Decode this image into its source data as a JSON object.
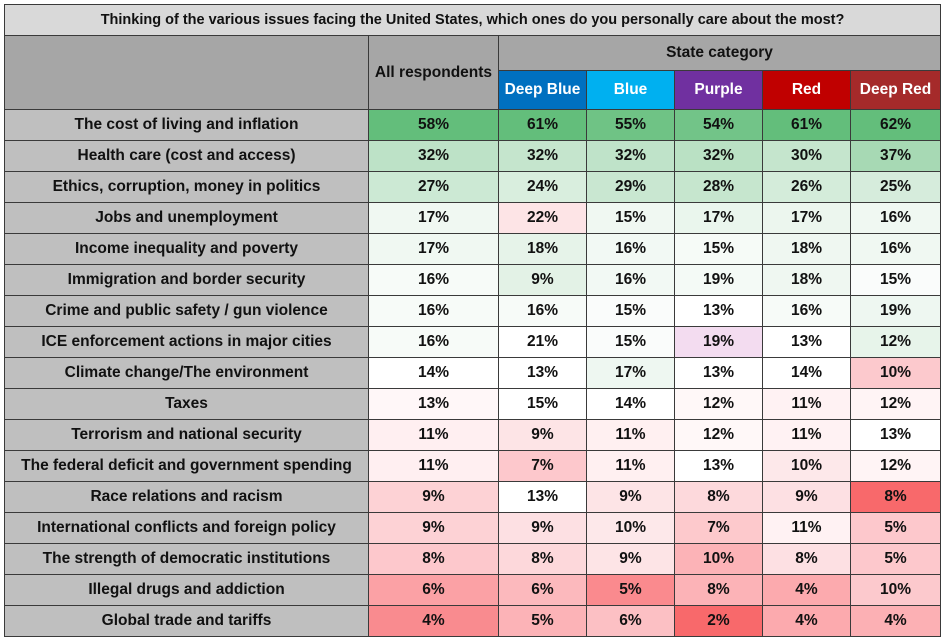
{
  "title": "Thinking of the various issues facing the United States, which ones do you personally care about the most?",
  "header": {
    "all": "All respondents",
    "state_category": "State category",
    "states": [
      {
        "label": "Deep Blue",
        "color": "#0070c0"
      },
      {
        "label": "Blue",
        "color": "#00b0f0"
      },
      {
        "label": "Purple",
        "color": "#7030a0"
      },
      {
        "label": "Red",
        "color": "#c00000"
      },
      {
        "label": "Deep Red",
        "color": "#a52a2a"
      }
    ]
  },
  "chart_data": {
    "type": "table",
    "title": "Thinking of the various issues facing the United States, which ones do you personally care about the most?",
    "columns": [
      "All respondents",
      "Deep Blue",
      "Blue",
      "Purple",
      "Red",
      "Deep Red"
    ],
    "column_group": "State category",
    "rows": [
      {
        "label": "The cost of living and inflation",
        "values": [
          "58%",
          "61%",
          "55%",
          "54%",
          "61%",
          "62%"
        ]
      },
      {
        "label": "Health care (cost and access)",
        "values": [
          "32%",
          "32%",
          "32%",
          "32%",
          "30%",
          "37%"
        ]
      },
      {
        "label": "Ethics, corruption, money in politics",
        "values": [
          "27%",
          "24%",
          "29%",
          "28%",
          "26%",
          "25%"
        ]
      },
      {
        "label": "Jobs and unemployment",
        "values": [
          "17%",
          "22%",
          "15%",
          "17%",
          "17%",
          "16%"
        ]
      },
      {
        "label": "Income inequality and poverty",
        "values": [
          "17%",
          "18%",
          "16%",
          "15%",
          "18%",
          "16%"
        ]
      },
      {
        "label": "Immigration and border security",
        "values": [
          "16%",
          "9%",
          "16%",
          "19%",
          "18%",
          "15%"
        ]
      },
      {
        "label": "Crime and public safety / gun violence",
        "values": [
          "16%",
          "16%",
          "15%",
          "13%",
          "16%",
          "19%"
        ]
      },
      {
        "label": "ICE enforcement actions in major cities",
        "values": [
          "16%",
          "21%",
          "15%",
          "19%",
          "13%",
          "12%"
        ]
      },
      {
        "label": "Climate change/The environment",
        "values": [
          "14%",
          "13%",
          "17%",
          "13%",
          "14%",
          "10%"
        ]
      },
      {
        "label": "Taxes",
        "values": [
          "13%",
          "15%",
          "14%",
          "12%",
          "11%",
          "12%"
        ]
      },
      {
        "label": "Terrorism and national security",
        "values": [
          "11%",
          "9%",
          "11%",
          "12%",
          "11%",
          "13%"
        ]
      },
      {
        "label": "The federal deficit and government spending",
        "values": [
          "11%",
          "7%",
          "11%",
          "13%",
          "10%",
          "12%"
        ]
      },
      {
        "label": "Race relations and racism",
        "values": [
          "9%",
          "13%",
          "9%",
          "8%",
          "9%",
          "8%"
        ]
      },
      {
        "label": "International conflicts and foreign policy",
        "values": [
          "9%",
          "9%",
          "10%",
          "7%",
          "11%",
          "5%"
        ]
      },
      {
        "label": "The strength of democratic institutions",
        "values": [
          "8%",
          "8%",
          "9%",
          "10%",
          "8%",
          "5%"
        ]
      },
      {
        "label": "Illegal drugs and addiction",
        "values": [
          "6%",
          "6%",
          "5%",
          "8%",
          "4%",
          "10%"
        ]
      },
      {
        "label": "Global trade and tariffs",
        "values": [
          "4%",
          "5%",
          "6%",
          "2%",
          "4%",
          "4%"
        ]
      }
    ],
    "cell_colors": [
      [
        "#63be7b",
        "#63be7b",
        "#6fc385",
        "#72c488",
        "#63be7b",
        "#63be7b"
      ],
      [
        "#bde2c7",
        "#c5e5cd",
        "#bfe3c9",
        "#bae1c4",
        "#c5e5cd",
        "#a7d9b4"
      ],
      [
        "#cce9d4",
        "#d9eede",
        "#c9e7d1",
        "#c6e6ce",
        "#d4ecda",
        "#d6ecdc"
      ],
      [
        "#f0f8f2",
        "#fde4e6",
        "#f0f8f2",
        "#eaf6ed",
        "#ecf6ee",
        "#f0f8f2"
      ],
      [
        "#f0f8f2",
        "#e6f3e9",
        "#f2f9f4",
        "#f6fbf7",
        "#eff7f1",
        "#f0f8f2"
      ],
      [
        "#f7fbf8",
        "#e3f2e6",
        "#f2f9f4",
        "#f4faf6",
        "#eff7f1",
        "#fafcfb"
      ],
      [
        "#f7fbf8",
        "#f7fbf8",
        "#fafcfb",
        "#ffffff",
        "#f7fbf8",
        "#eef7f1"
      ],
      [
        "#f7fbf8",
        "#ffffff",
        "#fafcfb",
        "#f3dcf0",
        "#ffffff",
        "#e7f4ea"
      ],
      [
        "#ffffff",
        "#ffffff",
        "#eef7f1",
        "#ffffff",
        "#ffffff",
        "#fcc9cd"
      ],
      [
        "#fff7f8",
        "#ffffff",
        "#ffffff",
        "#fff8f8",
        "#fff2f3",
        "#fff4f5"
      ],
      [
        "#ffeff1",
        "#fde4e6",
        "#fff0f1",
        "#fff8f8",
        "#fff2f3",
        "#ffffff"
      ],
      [
        "#ffeff1",
        "#fdc8cc",
        "#fff0f1",
        "#ffffff",
        "#fde8ea",
        "#fff4f5"
      ],
      [
        "#fdd2d5",
        "#ffffff",
        "#fde4e6",
        "#fdd9dc",
        "#fde0e3",
        "#f8696b"
      ],
      [
        "#fdd2d5",
        "#fde0e3",
        "#fde8ea",
        "#fdc9cc",
        "#fff2f3",
        "#fdc8cc"
      ],
      [
        "#fdc8cc",
        "#fdd8db",
        "#fde4e6",
        "#fcb3b7",
        "#fde0e3",
        "#fdc8cc"
      ],
      [
        "#fba1a5",
        "#fcb9bd",
        "#fa8a8e",
        "#fcb3b7",
        "#fcaaae",
        "#fcc9cd"
      ],
      [
        "#f98b8f",
        "#fcb3b7",
        "#fcc0c4",
        "#f8696b",
        "#fcaaae",
        "#fcb0b4"
      ]
    ]
  }
}
